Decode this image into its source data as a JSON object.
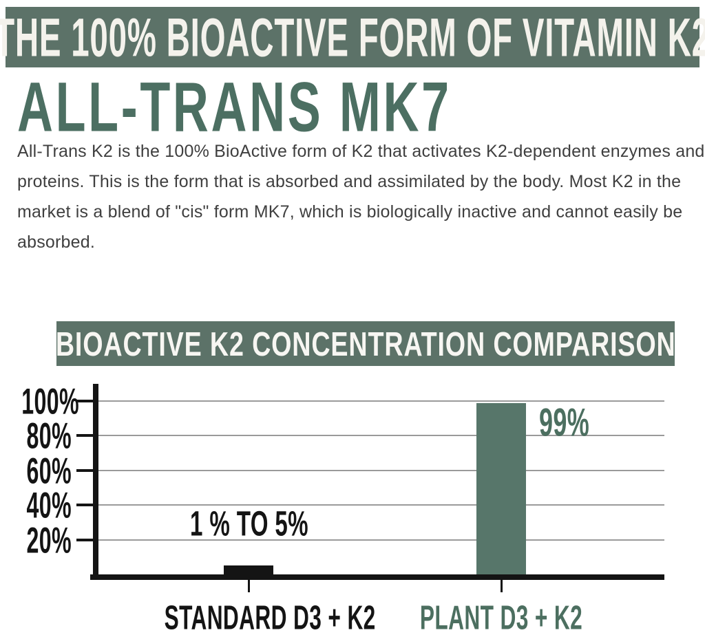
{
  "page": {
    "background": "#ffffff"
  },
  "top_banner": {
    "text": "THE 100% BIOACTIVE FORM OF VITAMIN K2",
    "bg": "#5c7268",
    "text_color": "#f4f2ec"
  },
  "heading": {
    "text": "ALL-TRANS MK7",
    "color": "#4c6f62"
  },
  "paragraph": {
    "color": "#3f3f3f",
    "lines": [
      "All-Trans K2 is the 100% BioActive form of K2 that activates K2-dependent enzymes and",
      "proteins. This is the form that is absorbed and assimilated by the body. Most K2 in the",
      "market is a blend of \"cis\" form MK7, which is biologically inactive and cannot easily be",
      "absorbed."
    ]
  },
  "chart_title": {
    "bg": "#5c7268",
    "text_color": "#f7f6f2"
  },
  "chart_data": {
    "type": "bar",
    "title": "BIOACTIVE K2 CONCENTRATION COMPARISON",
    "categories": [
      "STANDARD D3 + K2",
      "PLANT D3 + K2"
    ],
    "values": [
      5,
      99
    ],
    "bar_value_labels": [
      "1 % TO 5%",
      "99%"
    ],
    "bar_colors": [
      "#141414",
      "#57766a"
    ],
    "label_colors": [
      "#141414",
      "#4c6f60"
    ],
    "y_ticks": [
      {
        "label": "100%",
        "value": 100
      },
      {
        "label": "80%",
        "value": 80
      },
      {
        "label": "60%",
        "value": 60
      },
      {
        "label": "40%",
        "value": 40
      },
      {
        "label": "20%",
        "value": 20
      }
    ],
    "ylim": [
      0,
      100
    ],
    "grid": true,
    "legend": false,
    "xlabel": "",
    "ylabel": "",
    "axis_color": "#141414",
    "gridline_color": "#9a9a9a"
  }
}
